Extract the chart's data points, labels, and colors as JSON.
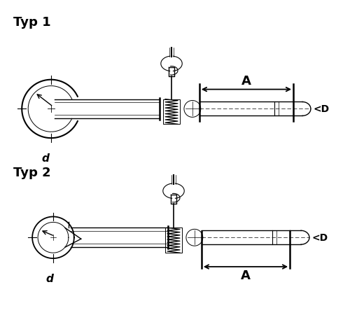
{
  "title1": "Typ 1",
  "title2": "Typ 2",
  "label_A": "A",
  "label_D": "<D",
  "label_d": "d",
  "bg_color": "#ffffff",
  "line_color": "#000000",
  "line_width": 1.0,
  "figsize": [
    5.0,
    4.5
  ],
  "dpi": 100
}
